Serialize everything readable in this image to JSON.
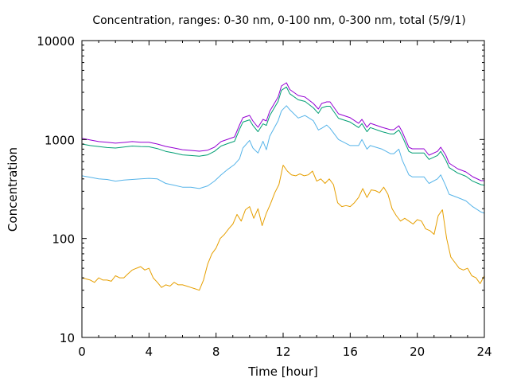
{
  "chart_data": {
    "type": "line",
    "title": "Concentration, ranges: 0-30 nm, 0-100 nm, 0-300 nm, total (5/9/1)",
    "xlabel": "Time [hour]",
    "ylabel": "Concentration",
    "xlim": [
      0,
      24
    ],
    "ylim": [
      10,
      10000
    ],
    "yscale": "log",
    "grid": false,
    "legend": "none",
    "x_ticks": [
      0,
      4,
      8,
      12,
      16,
      20,
      24
    ],
    "x_tick_labels": [
      "0",
      "4",
      "8",
      "12",
      "16",
      "20",
      "24"
    ],
    "y_ticks": [
      10,
      100,
      1000,
      10000
    ],
    "y_tick_labels": [
      "10",
      "100",
      "1000",
      "10000"
    ],
    "series": [
      {
        "name": "total",
        "color": "#9400d3",
        "x": [
          0,
          0.5,
          1.0,
          1.5,
          2.0,
          2.5,
          3.0,
          3.5,
          4.0,
          4.5,
          5.0,
          5.5,
          6.0,
          6.5,
          7.0,
          7.5,
          7.9,
          8.3,
          8.7,
          9.1,
          9.4,
          9.6,
          10.0,
          10.2,
          10.5,
          10.8,
          11.0,
          11.2,
          11.7,
          11.9,
          12.2,
          12.4,
          12.9,
          13.3,
          13.8,
          14.1,
          14.3,
          14.6,
          14.8,
          15.3,
          16.0,
          16.5,
          16.7,
          17.0,
          17.2,
          17.9,
          18.4,
          18.6,
          18.9,
          19.1,
          19.5,
          19.7,
          20.4,
          20.7,
          21.2,
          21.4,
          21.7,
          21.9,
          22.4,
          22.9,
          23.3,
          23.8,
          24.0
        ],
        "values": [
          1026,
          990,
          953,
          940,
          919,
          935,
          953,
          940,
          940,
          900,
          852,
          820,
          790,
          776,
          762,
          780,
          836,
          953,
          1007,
          1064,
          1405,
          1661,
          1755,
          1541,
          1329,
          1600,
          1541,
          1926,
          2688,
          3481,
          3750,
          3200,
          2788,
          2688,
          2316,
          2035,
          2316,
          2403,
          2403,
          1820,
          1661,
          1459,
          1600,
          1329,
          1459,
          1329,
          1257,
          1257,
          1379,
          1200,
          836,
          805,
          805,
          695,
          760,
          836,
          695,
          577,
          507,
          471,
          421,
          384,
          384
        ]
      },
      {
        "name": "0-300 nm",
        "color": "#009e73",
        "x": [
          0,
          0.5,
          1.0,
          1.5,
          2.0,
          2.5,
          3.0,
          3.5,
          4.0,
          4.5,
          5.0,
          5.5,
          6.0,
          6.5,
          7.0,
          7.5,
          7.9,
          8.3,
          8.7,
          9.1,
          9.4,
          9.6,
          10.0,
          10.2,
          10.5,
          10.8,
          11.0,
          11.2,
          11.7,
          11.9,
          12.2,
          12.4,
          12.9,
          13.3,
          13.8,
          14.1,
          14.3,
          14.6,
          14.8,
          15.3,
          16.0,
          16.5,
          16.7,
          17.0,
          17.2,
          17.9,
          18.4,
          18.6,
          18.9,
          19.1,
          19.5,
          19.7,
          20.4,
          20.7,
          21.2,
          21.4,
          21.7,
          21.9,
          22.4,
          22.9,
          23.3,
          23.8,
          24.0
        ],
        "values": [
          900,
          870,
          850,
          830,
          820,
          840,
          860,
          850,
          845,
          810,
          760,
          730,
          700,
          690,
          680,
          700,
          760,
          860,
          910,
          960,
          1270,
          1500,
          1580,
          1390,
          1200,
          1440,
          1390,
          1740,
          2430,
          3150,
          3400,
          2900,
          2520,
          2430,
          2090,
          1840,
          2090,
          2170,
          2170,
          1640,
          1500,
          1320,
          1450,
          1200,
          1320,
          1200,
          1140,
          1140,
          1250,
          1080,
          760,
          730,
          730,
          630,
          690,
          760,
          620,
          520,
          460,
          425,
          380,
          350,
          345
        ]
      },
      {
        "name": "0-100 nm",
        "color": "#56b4e9",
        "x": [
          0,
          0.5,
          1.0,
          1.5,
          2.0,
          2.5,
          3.0,
          3.5,
          4.0,
          4.5,
          5.0,
          5.5,
          6.0,
          6.5,
          7.0,
          7.5,
          7.9,
          8.3,
          8.7,
          9.1,
          9.4,
          9.6,
          10.0,
          10.2,
          10.5,
          10.8,
          11.0,
          11.2,
          11.7,
          11.9,
          12.2,
          12.4,
          12.9,
          13.3,
          13.8,
          14.1,
          14.3,
          14.6,
          14.8,
          15.3,
          16.0,
          16.5,
          16.7,
          17.0,
          17.2,
          17.9,
          18.4,
          18.6,
          18.9,
          19.1,
          19.5,
          19.7,
          20.4,
          20.7,
          21.2,
          21.4,
          21.7,
          21.9,
          22.4,
          22.9,
          23.3,
          23.8,
          24.0
        ],
        "values": [
          430,
          415,
          400,
          395,
          380,
          390,
          395,
          400,
          405,
          400,
          360,
          345,
          330,
          330,
          320,
          340,
          380,
          440,
          500,
          560,
          640,
          820,
          980,
          820,
          730,
          960,
          790,
          1080,
          1550,
          1950,
          2200,
          2000,
          1650,
          1750,
          1550,
          1250,
          1300,
          1400,
          1300,
          1000,
          870,
          870,
          1000,
          800,
          870,
          800,
          720,
          720,
          800,
          620,
          440,
          420,
          420,
          360,
          400,
          440,
          340,
          280,
          260,
          240,
          210,
          185,
          180
        ]
      },
      {
        "name": "0-30 nm",
        "color": "#e69f00",
        "x": [
          0,
          0.25,
          0.5,
          0.75,
          1.0,
          1.25,
          1.5,
          1.75,
          2.0,
          2.25,
          2.5,
          2.75,
          3.0,
          3.25,
          3.5,
          3.75,
          4.0,
          4.25,
          4.5,
          4.75,
          5.0,
          5.25,
          5.5,
          5.75,
          6.0,
          6.25,
          6.5,
          6.75,
          7.0,
          7.25,
          7.5,
          7.75,
          8.0,
          8.25,
          8.5,
          8.75,
          9.0,
          9.25,
          9.5,
          9.75,
          10.0,
          10.25,
          10.5,
          10.75,
          11.0,
          11.25,
          11.5,
          11.75,
          12.0,
          12.25,
          12.5,
          12.75,
          13.0,
          13.25,
          13.5,
          13.75,
          14.0,
          14.25,
          14.5,
          14.75,
          15.0,
          15.25,
          15.5,
          15.75,
          16.0,
          16.25,
          16.5,
          16.75,
          17.0,
          17.25,
          17.5,
          17.75,
          18.0,
          18.25,
          18.5,
          18.75,
          19.0,
          19.25,
          19.5,
          19.75,
          20.0,
          20.25,
          20.5,
          20.75,
          21.0,
          21.25,
          21.5,
          21.75,
          22.0,
          22.25,
          22.5,
          22.75,
          23.0,
          23.25,
          23.5,
          23.75,
          24.0
        ],
        "values": [
          40,
          39,
          38,
          36,
          40,
          38,
          38,
          37,
          42,
          40,
          40,
          44,
          48,
          50,
          52,
          48,
          50,
          40,
          36,
          32,
          34,
          33,
          36,
          34,
          34,
          33,
          32,
          31,
          30,
          38,
          55,
          70,
          80,
          100,
          110,
          125,
          140,
          175,
          150,
          195,
          210,
          160,
          200,
          135,
          180,
          225,
          290,
          350,
          550,
          480,
          440,
          430,
          450,
          430,
          440,
          480,
          380,
          400,
          360,
          400,
          350,
          230,
          210,
          215,
          210,
          230,
          260,
          320,
          260,
          310,
          305,
          290,
          330,
          280,
          200,
          170,
          150,
          160,
          150,
          140,
          155,
          150,
          125,
          120,
          110,
          170,
          195,
          100,
          65,
          57,
          50,
          48,
          50,
          42,
          40,
          35,
          42
        ]
      }
    ]
  }
}
